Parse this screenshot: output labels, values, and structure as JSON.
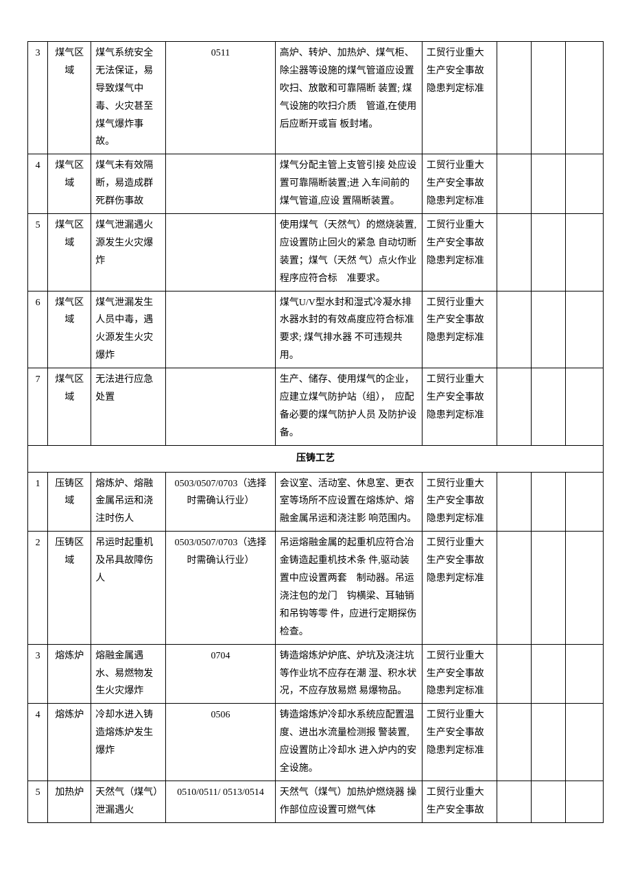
{
  "section1": {
    "rows": [
      {
        "idx": "3",
        "area": "煤气区域",
        "hazard": "煤气系统安全无法保证，易导致煤气中毒、火灾甚至煤气爆炸事故。",
        "code": "0511",
        "measure": "高炉、转炉、加热炉、煤气柜、除尘器等设施的煤气管道应设置吹扫、放散和可靠隔断 装置; 煤气设施的吹扫介质　管道,在使用后应断开或盲 板封堵。",
        "basis": "工贸行业重大生产安全事故隐患判定标准"
      },
      {
        "idx": "4",
        "area": "煤气区域",
        "hazard": "煤气未有效隔断，易造成群死群伤事故",
        "code": "",
        "measure": "煤气分配主管上支管引接 处应设置可靠隔断装置;进 入车间前的煤气管道,应设 置隔断装置。",
        "basis": "工贸行业重大生产安全事故隐患判定标准"
      },
      {
        "idx": "5",
        "area": "煤气区域",
        "hazard": "煤气泄漏遇火源发生火灾爆炸",
        "code": "",
        "measure": "使用煤气（天然气）的燃烧装置,应设置防止回火的紧急 自动切断装置；煤气（天然 气）点火作业程序应符合标　准要求。",
        "basis": "工贸行业重大生产安全事故隐患判定标准"
      },
      {
        "idx": "6",
        "area": "煤气区域",
        "hazard": "煤气泄漏发生人员中毒，遇火源发生火灾爆炸",
        "code": "",
        "measure": "煤气U/V型水封和湿式冷凝水排水器水封的有效卨度应符合标准要求; 煤气排水器 不可违规共用。",
        "basis": "工贸行业重大生产安全事故隐患判定标准"
      },
      {
        "idx": "7",
        "area": "煤气区域",
        "hazard": "无法进行应急处置",
        "code": "",
        "measure": "生产、储存、使用煤气的企业，应建立煤气防护站（组），　应配备必要的煤气防护人员 及防护设备。",
        "basis": "工贸行业重大生产安全事故隐患判定标准"
      }
    ]
  },
  "section_title": "压铸工艺",
  "section2": {
    "rows": [
      {
        "idx": "1",
        "area": "压铸区域",
        "hazard": "熔炼炉、熔融金属吊运和浇注时伤人",
        "code": "0503/0507/0703（选择时需确认行业）",
        "measure": "会议室、活动室、休息室、更衣室等场所不应设置在熔炼炉、熔融金属吊运和浇注影 响范围内。",
        "basis": "工贸行业重大生产安全事故隐患判定标准"
      },
      {
        "idx": "2",
        "area": "压铸区域",
        "hazard": "吊运时起重机及吊具故障伤人",
        "code": "0503/0507/0703（选择时需确认行业）",
        "measure": "吊运熔融金属的起重机应符合冶金铸造起重机技术条 件,驱动装置中应设置两套　制动器。吊运浇注包的龙门　钩横梁、耳轴销和吊钩等零 件，应进行定期探伤检查。",
        "basis": "工贸行业重大生产安全事故隐患判定标准"
      },
      {
        "idx": "3",
        "area": "熔炼炉",
        "hazard": "熔融金属遇水、易燃物发生火灾爆炸",
        "code": "0704",
        "measure": "铸造熔炼炉炉底、炉坑及浇注坑等作业坑不应存在潮 湿、积水状况，不应存放易燃 易爆物品。",
        "basis": "工贸行业重大生产安全事故隐患判定标准"
      },
      {
        "idx": "4",
        "area": "熔炼炉",
        "hazard": "冷却水进入铸造熔炼炉发生爆炸",
        "code": "0506",
        "measure": "铸造熔炼炉冷却水系统应配置温度、进出水流量检测报 警装置,应设置防止冷却水 进入炉内的安全设施。",
        "basis": "工贸行业重大生产安全事故隐患判定标准"
      },
      {
        "idx": "5",
        "area": "加热炉",
        "hazard": "天然气（煤气）　泄漏遇火",
        "code": "0510/0511/ 0513/0514",
        "measure": "天然气（煤气）加热炉燃烧器 操作部位应设置可燃气体",
        "basis": "工贸行业重大生产安全事故"
      }
    ]
  }
}
